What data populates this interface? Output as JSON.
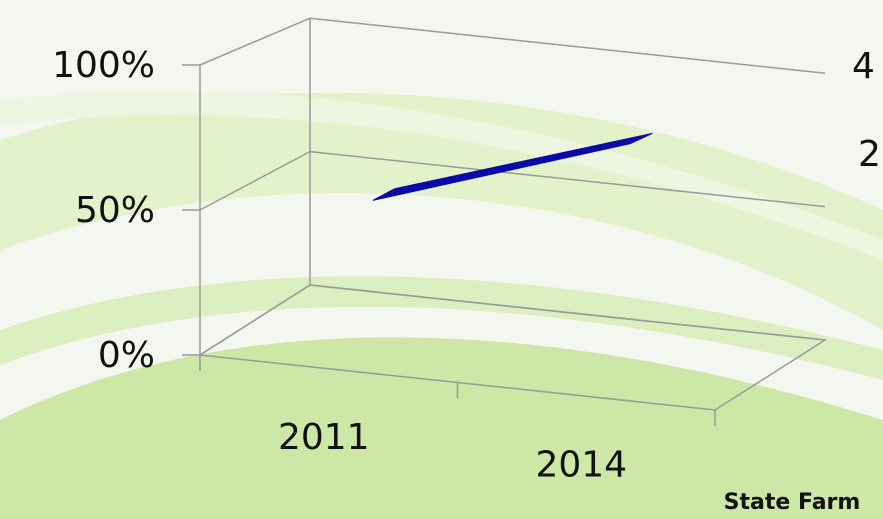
{
  "chart_data": {
    "type": "line",
    "categories": [
      "2011",
      "2014"
    ],
    "series": [
      {
        "name": null,
        "color": "#0a0aa8",
        "values": [
          50,
          80
        ]
      }
    ],
    "ylim": [
      0,
      100
    ],
    "yticks": [
      {
        "value": 0,
        "label": "0%"
      },
      {
        "value": 50,
        "label": "50%"
      },
      {
        "value": 100,
        "label": "100%"
      }
    ],
    "grid": true,
    "right_labels": [
      "4",
      "2"
    ],
    "footer": "State Farm"
  }
}
